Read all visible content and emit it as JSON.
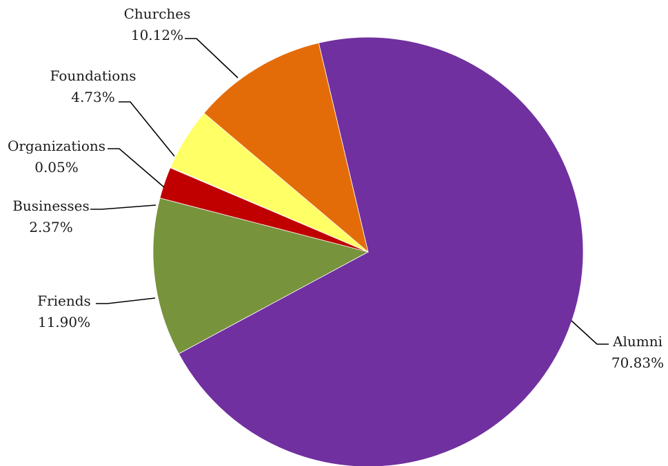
{
  "chart_data": {
    "type": "pie",
    "title": "",
    "start_category": "Alumni",
    "direction": "clockwise",
    "series": [
      {
        "name": "",
        "values": [
          {
            "label": "Alumni",
            "percent": 70.83,
            "display": "70.83%",
            "color": "#7030A0"
          },
          {
            "label": "Friends",
            "percent": 11.9,
            "display": "11.90%",
            "color": "#77933C"
          },
          {
            "label": "Businesses",
            "percent": 2.37,
            "display": "2.37%",
            "color": "#C00000"
          },
          {
            "label": "Organizations",
            "percent": 0.05,
            "display": "0.05%",
            "color": "#E46C0A"
          },
          {
            "label": "Foundations",
            "percent": 4.73,
            "display": "4.73%",
            "color": "#FFFF66"
          },
          {
            "label": "Churches",
            "percent": 10.12,
            "display": "10.12%",
            "color": "#E36C09"
          }
        ]
      }
    ],
    "legend": "none",
    "data_labels": "outside with leader lines"
  }
}
